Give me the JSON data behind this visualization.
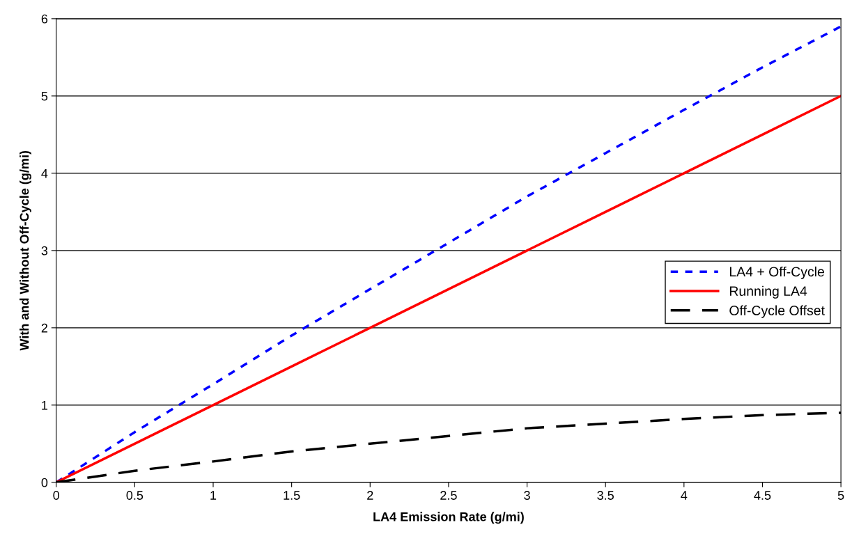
{
  "chart_data": {
    "type": "line",
    "xlabel": "LA4 Emission Rate (g/mi)",
    "ylabel": "With and Without Off-Cycle (g/mi)",
    "x": [
      0,
      0.5,
      1,
      1.5,
      2,
      2.5,
      3,
      3.5,
      4,
      4.5,
      5
    ],
    "series": [
      {
        "name": "LA4 + Off-Cycle",
        "color": "#0000ff",
        "line_style": "dotted",
        "values": [
          0,
          0.65,
          1.27,
          1.9,
          2.5,
          3.1,
          3.7,
          4.26,
          4.82,
          5.37,
          5.9
        ]
      },
      {
        "name": "Running LA4",
        "color": "#ff0000",
        "line_style": "solid",
        "values": [
          0,
          0.5,
          1,
          1.5,
          2,
          2.5,
          3,
          3.5,
          4,
          4.5,
          5
        ]
      },
      {
        "name": "Off-Cycle Offset",
        "color": "#000000",
        "line_style": "dashed",
        "values": [
          0,
          0.15,
          0.27,
          0.4,
          0.5,
          0.6,
          0.7,
          0.76,
          0.82,
          0.87,
          0.9
        ]
      }
    ],
    "xlim": [
      0,
      5
    ],
    "xticks": [
      0,
      0.5,
      1,
      1.5,
      2,
      2.5,
      3,
      3.5,
      4,
      4.5,
      5
    ],
    "ylim": [
      0,
      6
    ],
    "yticks": [
      0,
      1,
      2,
      3,
      4,
      5,
      6
    ],
    "grid": "y",
    "legend": "right",
    "marker": "none"
  }
}
